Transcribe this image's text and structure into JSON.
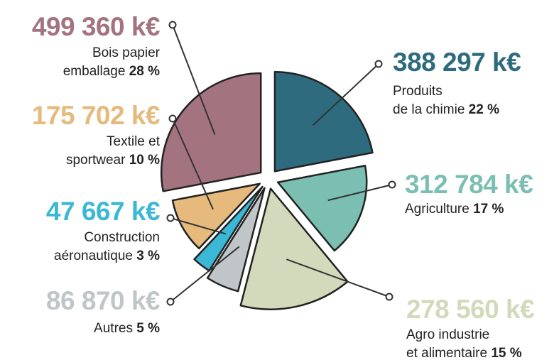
{
  "chart_data": {
    "type": "pie",
    "categories": [
      [
        "Produits",
        "de la chimie"
      ],
      [
        "Agriculture"
      ],
      [
        "Agro industrie",
        "et alimentaire"
      ],
      [
        "Autres"
      ],
      [
        "Construction",
        "aéronautique"
      ],
      [
        "Textile et",
        "sportwear"
      ],
      [
        "Bois papier",
        "emballage"
      ]
    ],
    "values": [
      388297,
      312784,
      278560,
      86870,
      47667,
      175702,
      499360
    ],
    "value_labels": [
      "388 297 k€",
      "312 784 k€",
      "278 560 k€",
      "86 870 k€",
      "47 667 k€",
      "175 702 k€",
      "499 360 k€"
    ],
    "shares": [
      22,
      17,
      15,
      5,
      3,
      10,
      28
    ],
    "share_labels": [
      "22 %",
      "17 %",
      "15 %",
      "5 %",
      "3 %",
      "10 %",
      "28 %"
    ],
    "colors": [
      "#2e6b7e",
      "#7bbfb2",
      "#d3d9bb",
      "#c0c6c8",
      "#3bb8d6",
      "#e6b97c",
      "#a37480"
    ]
  }
}
